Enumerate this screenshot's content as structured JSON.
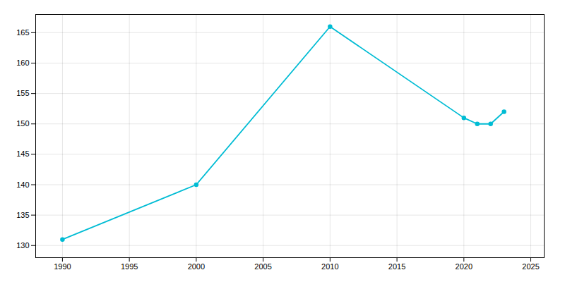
{
  "chart_data": {
    "type": "line",
    "x": [
      1990,
      2000,
      2010,
      2020,
      2021,
      2022,
      2023
    ],
    "values": [
      131,
      140,
      166,
      151,
      150,
      150,
      152
    ],
    "color": "#00BCD4",
    "marker": "circle",
    "xlim": [
      1988,
      2026
    ],
    "ylim": [
      128,
      168
    ],
    "xticks": [
      1990,
      1995,
      2000,
      2005,
      2010,
      2015,
      2020,
      2025
    ],
    "yticks": [
      130,
      135,
      140,
      145,
      150,
      155,
      160,
      165
    ],
    "grid": true
  }
}
